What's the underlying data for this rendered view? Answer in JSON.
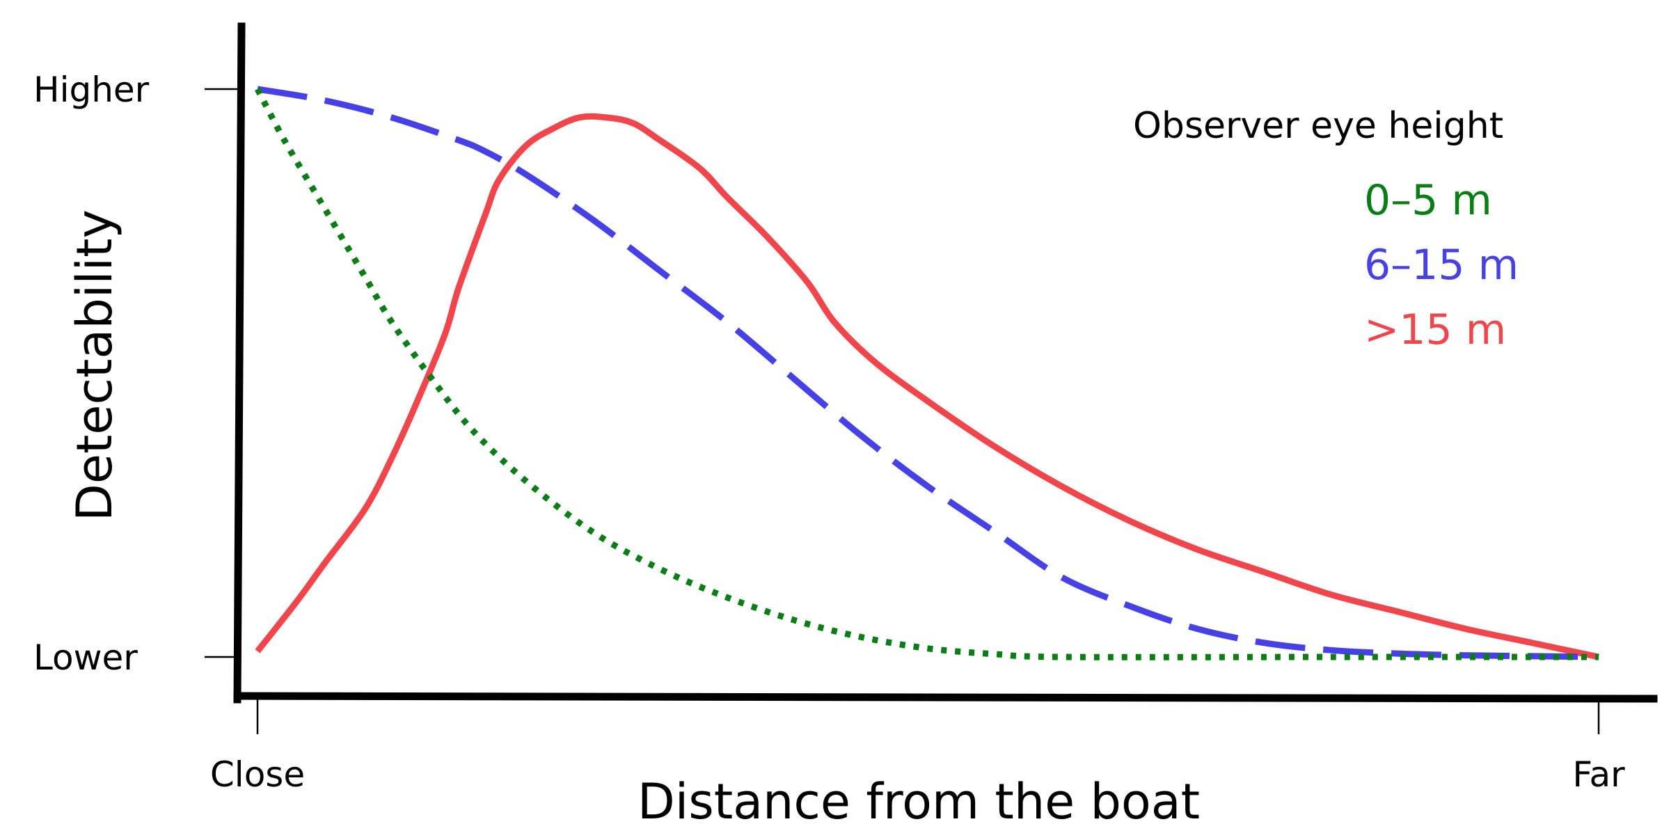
{
  "chart_data": {
    "type": "line",
    "title": "",
    "xlabel": "Distance from the boat",
    "ylabel": "Detectability",
    "xlim": [
      0,
      1
    ],
    "ylim": [
      0,
      1
    ],
    "x_ticks": [
      {
        "value": 0,
        "label": "Close"
      },
      {
        "value": 1,
        "label": "Far"
      }
    ],
    "y_ticks": [
      {
        "value": 0,
        "label": "Lower"
      },
      {
        "value": 1,
        "label": "Higher"
      }
    ],
    "grid": false,
    "legend": {
      "title": "Observer eye height",
      "placement": "top-right"
    },
    "series": [
      {
        "name": "0–5 m",
        "color": "#0b7d16",
        "style": "dotted",
        "points": [
          [
            0.0,
            1.0
          ],
          [
            0.02,
            0.91
          ],
          [
            0.05,
            0.79
          ],
          [
            0.08,
            0.67
          ],
          [
            0.1,
            0.59
          ],
          [
            0.13,
            0.49
          ],
          [
            0.16,
            0.4
          ],
          [
            0.2,
            0.31
          ],
          [
            0.25,
            0.22
          ],
          [
            0.3,
            0.155
          ],
          [
            0.35,
            0.105
          ],
          [
            0.4,
            0.065
          ],
          [
            0.45,
            0.035
          ],
          [
            0.5,
            0.015
          ],
          [
            0.55,
            0.005
          ],
          [
            0.6,
            0.0
          ],
          [
            0.8,
            0.0
          ],
          [
            1.0,
            0.0
          ]
        ]
      },
      {
        "name": "6–15 m",
        "color": "#4641e6",
        "style": "dashed",
        "points": [
          [
            0.0,
            1.0
          ],
          [
            0.05,
            0.98
          ],
          [
            0.1,
            0.95
          ],
          [
            0.15,
            0.91
          ],
          [
            0.17,
            0.89
          ],
          [
            0.2,
            0.85
          ],
          [
            0.25,
            0.77
          ],
          [
            0.3,
            0.68
          ],
          [
            0.35,
            0.59
          ],
          [
            0.4,
            0.49
          ],
          [
            0.45,
            0.39
          ],
          [
            0.5,
            0.3
          ],
          [
            0.55,
            0.22
          ],
          [
            0.6,
            0.14
          ],
          [
            0.65,
            0.09
          ],
          [
            0.7,
            0.05
          ],
          [
            0.75,
            0.025
          ],
          [
            0.8,
            0.012
          ],
          [
            0.85,
            0.006
          ],
          [
            0.9,
            0.003
          ],
          [
            1.0,
            0.0
          ]
        ]
      },
      {
        "name": ">15 m",
        "color": "#f0464b",
        "style": "solid",
        "points": [
          [
            0.0,
            0.01
          ],
          [
            0.03,
            0.1
          ],
          [
            0.05,
            0.165
          ],
          [
            0.08,
            0.26
          ],
          [
            0.1,
            0.35
          ],
          [
            0.12,
            0.455
          ],
          [
            0.14,
            0.57
          ],
          [
            0.15,
            0.65
          ],
          [
            0.17,
            0.78
          ],
          [
            0.18,
            0.84
          ],
          [
            0.2,
            0.9
          ],
          [
            0.22,
            0.93
          ],
          [
            0.24,
            0.95
          ],
          [
            0.26,
            0.95
          ],
          [
            0.28,
            0.94
          ],
          [
            0.3,
            0.91
          ],
          [
            0.33,
            0.86
          ],
          [
            0.35,
            0.81
          ],
          [
            0.38,
            0.74
          ],
          [
            0.41,
            0.66
          ],
          [
            0.43,
            0.59
          ],
          [
            0.46,
            0.52
          ],
          [
            0.5,
            0.45
          ],
          [
            0.55,
            0.37
          ],
          [
            0.6,
            0.3
          ],
          [
            0.65,
            0.24
          ],
          [
            0.7,
            0.19
          ],
          [
            0.75,
            0.15
          ],
          [
            0.8,
            0.11
          ],
          [
            0.85,
            0.08
          ],
          [
            0.9,
            0.05
          ],
          [
            0.95,
            0.025
          ],
          [
            1.0,
            0.0
          ]
        ]
      }
    ]
  }
}
